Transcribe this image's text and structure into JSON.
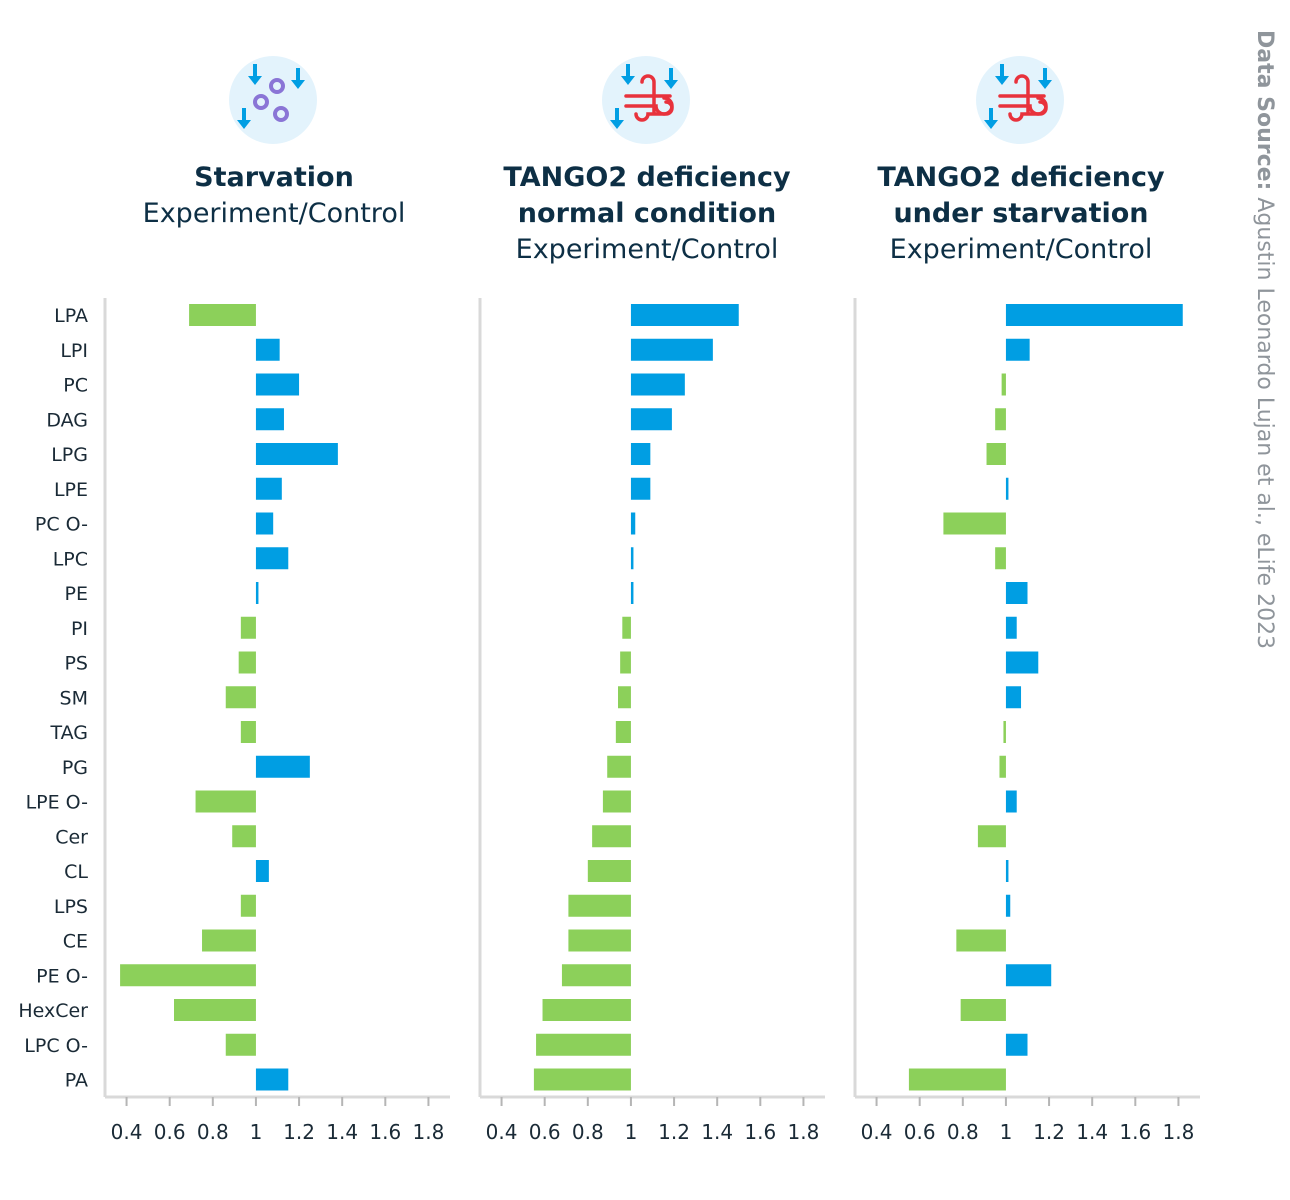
{
  "source": {
    "label": "Data Source:",
    "text": "Agustin Leonardo Lujan et al., eLife 2023"
  },
  "colors": {
    "increase": "#009ee3",
    "decrease": "#8cd05a",
    "axis": "#d9d9d9",
    "title": "#0d2f45"
  },
  "panels": [
    {
      "title_line1": "Starvation",
      "title_line2": "",
      "subtitle": "Experiment/Control",
      "icon": "starvation-icon"
    },
    {
      "title_line1": "TANGO2 deficiency",
      "title_line2": "normal condition",
      "subtitle": "Experiment/Control",
      "icon": "golgi-icon"
    },
    {
      "title_line1": "TANGO2 deficiency",
      "title_line2": "under starvation",
      "subtitle": "Experiment/Control",
      "icon": "golgi-icon"
    }
  ],
  "chart_data": {
    "type": "bar",
    "orientation": "horizontal",
    "baseline": 1,
    "xlim": [
      0.3,
      1.9
    ],
    "x_ticks": [
      0.4,
      0.6,
      0.8,
      1,
      1.2,
      1.4,
      1.6,
      1.8
    ],
    "x_tick_labels": [
      "0.4",
      "0.6",
      "0.8",
      "1",
      "1.2",
      "1.4",
      "1.6",
      "1.8"
    ],
    "categories": [
      "LPA",
      "LPI",
      "PC",
      "DAG",
      "LPG",
      "LPE",
      "PC O-",
      "LPC",
      "PE",
      "PI",
      "PS",
      "SM",
      "TAG",
      "PG",
      "LPE O-",
      "Cer",
      "CL",
      "LPS",
      "CE",
      "PE O-",
      "HexCer",
      "LPC O-",
      "PA"
    ],
    "series": [
      {
        "name": "Starvation",
        "values": [
          0.69,
          1.11,
          1.2,
          1.13,
          1.38,
          1.12,
          1.08,
          1.15,
          1.01,
          0.93,
          0.92,
          0.86,
          0.93,
          1.25,
          0.72,
          0.89,
          1.06,
          0.93,
          0.75,
          0.37,
          0.62,
          0.86,
          1.15
        ]
      },
      {
        "name": "TANGO2 deficiency normal condition",
        "values": [
          1.5,
          1.38,
          1.25,
          1.19,
          1.09,
          1.09,
          1.02,
          1.01,
          1.0,
          0.96,
          0.95,
          0.94,
          0.93,
          0.89,
          0.87,
          0.82,
          0.8,
          0.71,
          0.71,
          0.68,
          0.59,
          0.56,
          0.55
        ]
      },
      {
        "name": "TANGO2 deficiency under starvation",
        "values": [
          1.82,
          1.11,
          0.98,
          0.95,
          0.91,
          1.01,
          0.71,
          0.95,
          1.1,
          1.05,
          1.15,
          1.07,
          0.99,
          0.97,
          1.05,
          0.87,
          1.01,
          1.02,
          0.77,
          1.21,
          0.79,
          1.1,
          0.55
        ]
      }
    ]
  }
}
